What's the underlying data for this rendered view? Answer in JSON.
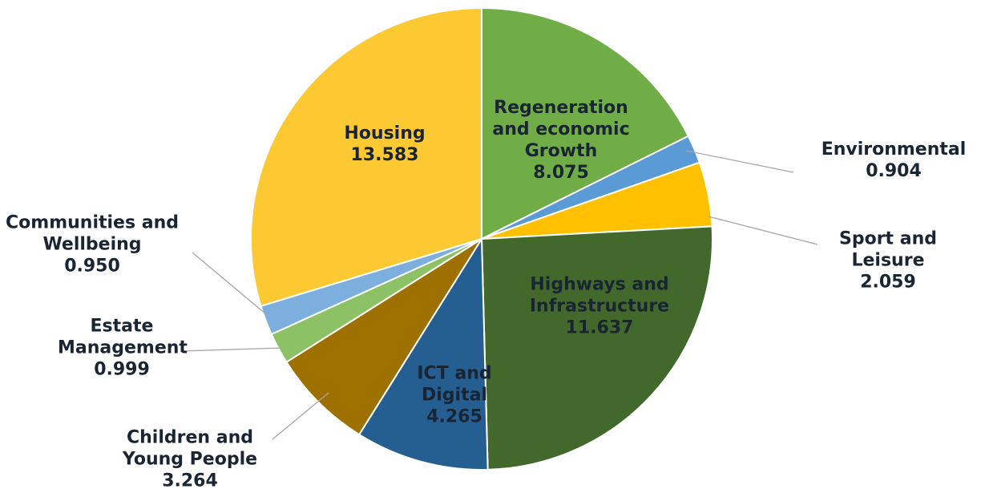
{
  "chart_data": {
    "type": "pie",
    "categories": [
      "Regeneration and economic Growth",
      "Environmental",
      "Sport and Leisure",
      "Highways and Infrastructure",
      "ICT and Digital",
      "Children and Young People",
      "Estate Management",
      "Communities and Wellbeing",
      "Housing"
    ],
    "values": [
      8.075,
      0.904,
      2.059,
      11.637,
      4.265,
      3.264,
      0.999,
      0.95,
      13.583
    ],
    "value_labels": [
      "8.075",
      "0.904",
      "2.059",
      "11.637",
      "4.265",
      "3.264",
      "0.999",
      "0.950",
      "13.583"
    ],
    "colors": [
      "#70ad47",
      "#5b9bd5",
      "#ffc000",
      "#43682b",
      "#255e91",
      "#9e7000",
      "#8cc265",
      "#7cafdd",
      "#fdc933"
    ]
  }
}
